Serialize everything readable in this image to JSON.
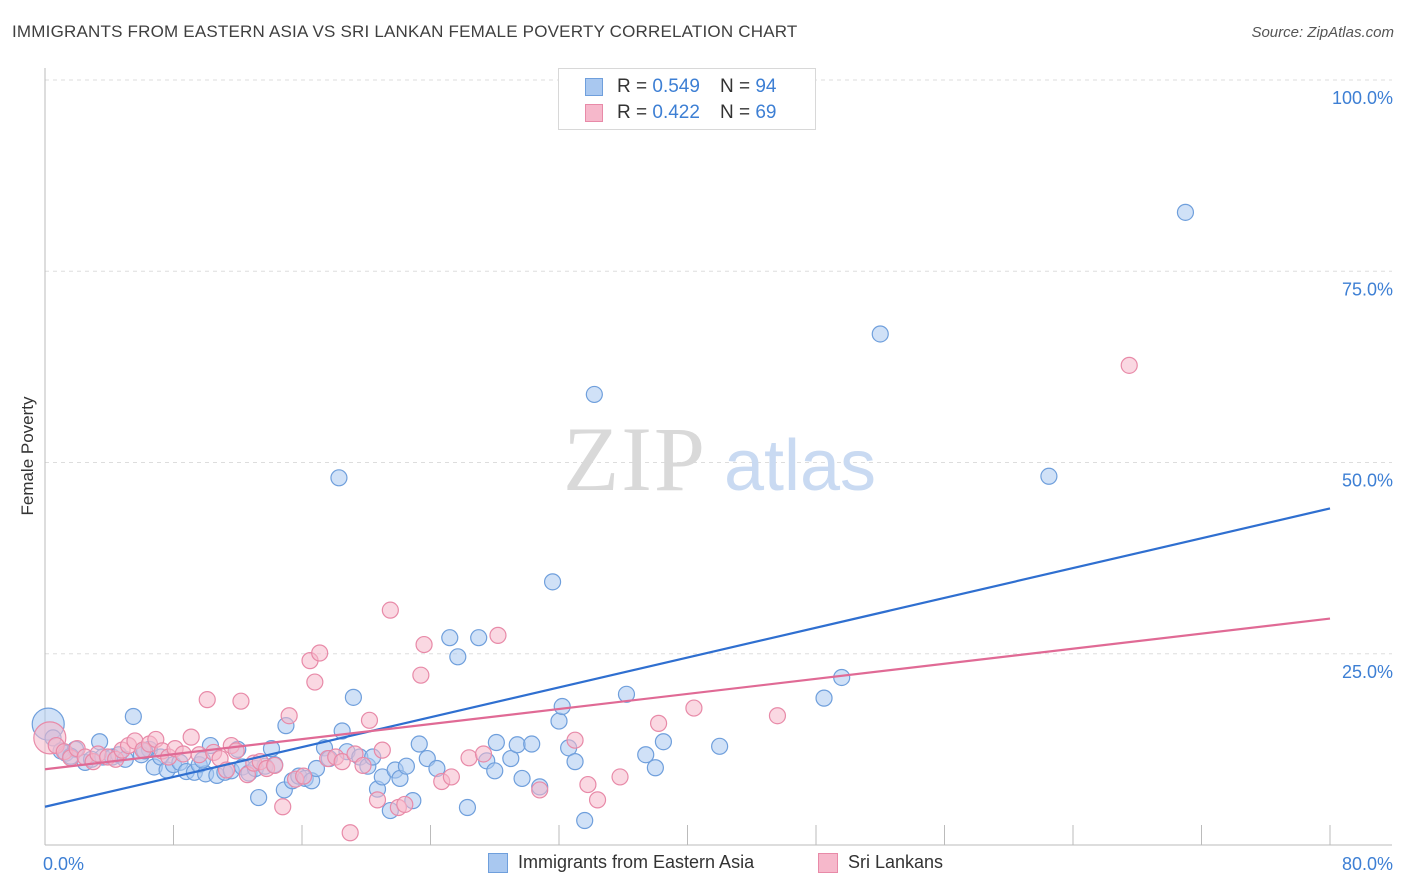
{
  "header": {
    "title": "IMMIGRANTS FROM EASTERN ASIA VS SRI LANKAN FEMALE POVERTY CORRELATION CHART",
    "source": "Source: ZipAtlas.com"
  },
  "watermark": {
    "zip": "ZIP",
    "atlas": "atlas"
  },
  "legend": {
    "rows": [
      {
        "r_label": "R =",
        "r_value": "0.549",
        "n_label": "N =",
        "n_value": "94"
      },
      {
        "r_label": "R =",
        "r_value": "0.422",
        "n_label": "N =",
        "n_value": "69"
      }
    ]
  },
  "colors": {
    "blue_fill": "#a9c8f0",
    "blue_stroke": "#6f9fdc",
    "blue_line": "#2f6fd0",
    "pink_fill": "#f6b8cb",
    "pink_stroke": "#e88aa8",
    "pink_line": "#e06a95",
    "tick_text": "#3d7fd4",
    "grid": "#dddddd"
  },
  "chart_data": {
    "type": "scatter",
    "title": "IMMIGRANTS FROM EASTERN ASIA VS SRI LANKAN FEMALE POVERTY CORRELATION CHART",
    "xlabel": "",
    "ylabel": "Female Poverty",
    "xlim": [
      0,
      80
    ],
    "ylim": [
      0,
      100
    ],
    "x_tick_labels": [
      "0.0%",
      "80.0%"
    ],
    "y_ticks": [
      25,
      50,
      75,
      100
    ],
    "y_tick_labels": [
      "25.0%",
      "50.0%",
      "75.0%",
      "100.0%"
    ],
    "grid": true,
    "legend_position": "top-center",
    "series": [
      {
        "name": "Immigrants from Eastern Asia",
        "color": "#a9c8f0",
        "r": 0.549,
        "n": 94,
        "trend": {
          "x": [
            0,
            80
          ],
          "y": [
            5.0,
            44.0
          ]
        },
        "points": [
          [
            0.2,
            15.8
          ],
          [
            0.5,
            14.0
          ],
          [
            1.0,
            12.3
          ],
          [
            1.3,
            12.0
          ],
          [
            1.9,
            12.5
          ],
          [
            2.5,
            10.8
          ],
          [
            2.9,
            11.2
          ],
          [
            3.4,
            13.5
          ],
          [
            3.6,
            11.5
          ],
          [
            4.2,
            11.5
          ],
          [
            4.6,
            11.8
          ],
          [
            5.0,
            11.2
          ],
          [
            5.5,
            16.8
          ],
          [
            6.0,
            11.8
          ],
          [
            6.5,
            12.5
          ],
          [
            6.8,
            10.2
          ],
          [
            7.2,
            11.5
          ],
          [
            7.6,
            9.8
          ],
          [
            8.0,
            10.5
          ],
          [
            8.4,
            10.8
          ],
          [
            8.8,
            9.6
          ],
          [
            9.3,
            9.5
          ],
          [
            9.6,
            10.5
          ],
          [
            10.0,
            9.3
          ],
          [
            10.3,
            13.0
          ],
          [
            10.7,
            9.1
          ],
          [
            11.2,
            9.5
          ],
          [
            11.6,
            9.7
          ],
          [
            12.0,
            12.5
          ],
          [
            12.3,
            10.2
          ],
          [
            12.7,
            9.4
          ],
          [
            13.1,
            10.0
          ],
          [
            13.3,
            6.2
          ],
          [
            13.7,
            10.3
          ],
          [
            14.1,
            12.6
          ],
          [
            14.3,
            10.5
          ],
          [
            14.9,
            7.2
          ],
          [
            15.0,
            15.6
          ],
          [
            15.4,
            8.4
          ],
          [
            15.8,
            9.0
          ],
          [
            16.2,
            8.7
          ],
          [
            16.6,
            8.4
          ],
          [
            16.9,
            10.0
          ],
          [
            17.4,
            12.7
          ],
          [
            17.7,
            11.3
          ],
          [
            18.3,
            48.0
          ],
          [
            18.5,
            14.9
          ],
          [
            18.8,
            12.2
          ],
          [
            19.2,
            19.3
          ],
          [
            19.6,
            11.5
          ],
          [
            20.1,
            10.3
          ],
          [
            20.4,
            11.5
          ],
          [
            20.7,
            7.3
          ],
          [
            21.0,
            8.9
          ],
          [
            21.5,
            4.5
          ],
          [
            21.8,
            9.8
          ],
          [
            22.1,
            8.7
          ],
          [
            22.5,
            10.3
          ],
          [
            22.9,
            5.8
          ],
          [
            23.3,
            13.2
          ],
          [
            23.8,
            11.3
          ],
          [
            24.4,
            10.0
          ],
          [
            25.2,
            27.1
          ],
          [
            25.7,
            24.6
          ],
          [
            26.3,
            4.9
          ],
          [
            27.0,
            27.1
          ],
          [
            27.5,
            11.0
          ],
          [
            28.0,
            9.7
          ],
          [
            28.1,
            13.4
          ],
          [
            29.0,
            11.3
          ],
          [
            29.4,
            13.1
          ],
          [
            29.7,
            8.7
          ],
          [
            30.3,
            13.2
          ],
          [
            30.8,
            7.6
          ],
          [
            31.6,
            34.4
          ],
          [
            32.0,
            16.2
          ],
          [
            32.2,
            18.1
          ],
          [
            32.6,
            12.7
          ],
          [
            33.0,
            10.9
          ],
          [
            33.6,
            3.2
          ],
          [
            34.2,
            58.9
          ],
          [
            36.2,
            19.7
          ],
          [
            37.4,
            11.8
          ],
          [
            38.0,
            10.1
          ],
          [
            38.5,
            13.5
          ],
          [
            42.0,
            12.9
          ],
          [
            48.5,
            19.2
          ],
          [
            49.6,
            21.9
          ],
          [
            52.0,
            66.8
          ],
          [
            62.5,
            48.2
          ],
          [
            71.0,
            82.7
          ],
          [
            1.6,
            11.6
          ],
          [
            6.2,
            12.3
          ],
          [
            9.8,
            11.1
          ]
        ]
      },
      {
        "name": "Sri Lankans",
        "color": "#f6b8cb",
        "r": 0.422,
        "n": 69,
        "trend": {
          "x": [
            0,
            80
          ],
          "y": [
            9.9,
            29.6
          ]
        },
        "points": [
          [
            0.3,
            14.0
          ],
          [
            0.7,
            13.0
          ],
          [
            1.2,
            12.2
          ],
          [
            1.6,
            11.4
          ],
          [
            2.0,
            12.6
          ],
          [
            2.5,
            11.5
          ],
          [
            3.0,
            10.9
          ],
          [
            3.3,
            11.9
          ],
          [
            3.9,
            11.5
          ],
          [
            4.4,
            11.2
          ],
          [
            4.8,
            12.4
          ],
          [
            5.2,
            13.0
          ],
          [
            5.6,
            13.6
          ],
          [
            6.1,
            12.4
          ],
          [
            6.5,
            13.2
          ],
          [
            6.9,
            13.8
          ],
          [
            7.3,
            12.3
          ],
          [
            7.7,
            11.5
          ],
          [
            8.1,
            12.6
          ],
          [
            8.6,
            11.9
          ],
          [
            9.1,
            14.1
          ],
          [
            9.6,
            11.8
          ],
          [
            10.1,
            19.0
          ],
          [
            10.5,
            12.1
          ],
          [
            10.9,
            11.3
          ],
          [
            11.3,
            9.8
          ],
          [
            11.6,
            13.0
          ],
          [
            11.9,
            12.3
          ],
          [
            12.2,
            18.8
          ],
          [
            12.6,
            9.2
          ],
          [
            13.0,
            10.7
          ],
          [
            13.4,
            10.9
          ],
          [
            13.8,
            10.0
          ],
          [
            14.3,
            10.4
          ],
          [
            14.8,
            5.0
          ],
          [
            15.2,
            16.9
          ],
          [
            15.6,
            8.6
          ],
          [
            16.1,
            9.0
          ],
          [
            16.5,
            24.1
          ],
          [
            16.8,
            21.3
          ],
          [
            17.1,
            25.1
          ],
          [
            17.6,
            11.3
          ],
          [
            18.1,
            11.5
          ],
          [
            18.5,
            10.9
          ],
          [
            19.0,
            1.6
          ],
          [
            19.3,
            11.9
          ],
          [
            19.8,
            10.4
          ],
          [
            20.2,
            16.3
          ],
          [
            20.7,
            5.9
          ],
          [
            21.0,
            12.4
          ],
          [
            21.5,
            30.7
          ],
          [
            22.0,
            4.9
          ],
          [
            22.4,
            5.3
          ],
          [
            23.4,
            22.2
          ],
          [
            23.6,
            26.2
          ],
          [
            24.7,
            8.3
          ],
          [
            25.3,
            8.9
          ],
          [
            26.4,
            11.4
          ],
          [
            27.3,
            11.9
          ],
          [
            28.2,
            27.4
          ],
          [
            30.8,
            7.2
          ],
          [
            33.0,
            13.7
          ],
          [
            33.8,
            7.9
          ],
          [
            34.4,
            5.9
          ],
          [
            35.8,
            8.9
          ],
          [
            38.2,
            15.9
          ],
          [
            40.4,
            17.9
          ],
          [
            45.6,
            16.9
          ],
          [
            67.5,
            62.7
          ]
        ]
      }
    ]
  },
  "bottom_legend": {
    "items": [
      {
        "label": "Immigrants from Eastern Asia"
      },
      {
        "label": "Sri Lankans"
      }
    ]
  }
}
